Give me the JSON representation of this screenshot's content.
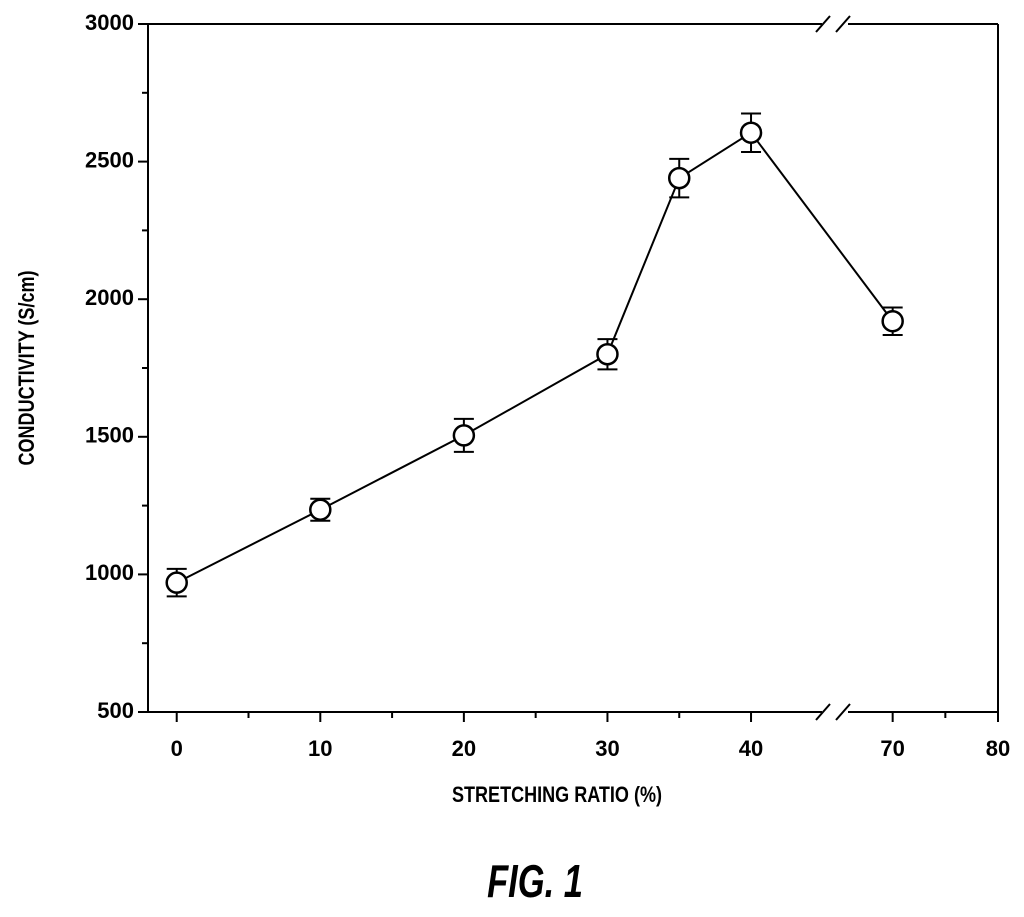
{
  "chart_data": {
    "type": "line",
    "title": "FIG. 1",
    "x_label": "STRETCHING RATIO (%)",
    "y_label": "CONDUCTIVITY (S/cm)",
    "x": [
      0,
      10,
      20,
      30,
      35,
      40,
      70
    ],
    "values": [
      970,
      1235,
      1505,
      1800,
      2440,
      2605,
      1920
    ],
    "errors": [
      50,
      40,
      60,
      55,
      70,
      70,
      50
    ],
    "color": "#000000",
    "xlim": [
      -2,
      80
    ],
    "x_break": [
      45.5,
      65
    ],
    "xticks": [
      0,
      10,
      20,
      30,
      40,
      70,
      80
    ],
    "x_minor_ticks": [
      5,
      15,
      25,
      35,
      75
    ],
    "ylim": [
      500,
      3000
    ],
    "yticks": [
      500,
      1000,
      1500,
      2000,
      2500,
      3000
    ],
    "y_minor_ticks": [
      750,
      1250,
      1750,
      2250,
      2750
    ]
  }
}
